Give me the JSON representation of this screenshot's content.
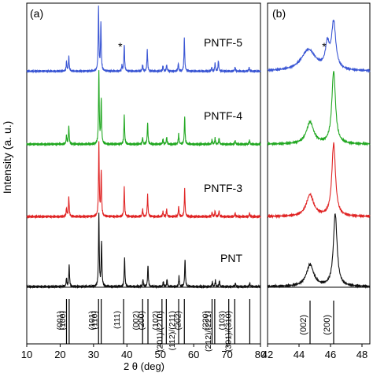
{
  "figure": {
    "ylabel": "Intensity (a. u.)",
    "xlabel": "2 θ (deg)"
  },
  "chart_data": [
    {
      "type": "line",
      "panel_label": "(a)",
      "xlabel": "2 θ (deg)",
      "ylabel": "Intensity (a. u.)",
      "xlim": [
        10,
        80
      ],
      "x_ticks": [
        10,
        20,
        30,
        40,
        50,
        60,
        70,
        80
      ],
      "grid": false,
      "series": [
        {
          "name": "PNTF-5",
          "color": "#3a56d4",
          "peaks": [
            [
              21.9,
              0.14
            ],
            [
              22.6,
              0.22
            ],
            [
              31.5,
              0.95
            ],
            [
              32.2,
              0.72
            ],
            [
              38.5,
              0.08
            ],
            [
              39.2,
              0.4
            ],
            [
              44.7,
              0.1
            ],
            [
              46.1,
              0.32
            ],
            [
              50.8,
              0.08
            ],
            [
              51.9,
              0.1
            ],
            [
              55.4,
              0.12
            ],
            [
              57.2,
              0.5
            ],
            [
              65.4,
              0.06
            ],
            [
              66.4,
              0.12
            ],
            [
              67.4,
              0.16
            ],
            [
              72.4,
              0.06
            ],
            [
              76.6,
              0.06
            ]
          ]
        },
        {
          "name": "PNTF-4",
          "color": "#22a822",
          "peaks": [
            [
              21.9,
              0.12
            ],
            [
              22.6,
              0.25
            ],
            [
              31.6,
              1.0
            ],
            [
              32.3,
              0.62
            ],
            [
              39.2,
              0.4
            ],
            [
              44.7,
              0.09
            ],
            [
              46.2,
              0.3
            ],
            [
              50.8,
              0.07
            ],
            [
              51.9,
              0.1
            ],
            [
              55.5,
              0.14
            ],
            [
              57.3,
              0.38
            ],
            [
              65.5,
              0.06
            ],
            [
              66.4,
              0.08
            ],
            [
              67.6,
              0.08
            ],
            [
              72.4,
              0.05
            ],
            [
              76.7,
              0.05
            ]
          ]
        },
        {
          "name": "PNTF-3",
          "color": "#e02424",
          "peaks": [
            [
              21.9,
              0.12
            ],
            [
              22.6,
              0.27
            ],
            [
              31.6,
              1.0
            ],
            [
              32.3,
              0.62
            ],
            [
              39.2,
              0.4
            ],
            [
              44.7,
              0.1
            ],
            [
              46.2,
              0.3
            ],
            [
              50.8,
              0.07
            ],
            [
              51.9,
              0.1
            ],
            [
              55.5,
              0.14
            ],
            [
              57.3,
              0.38
            ],
            [
              65.5,
              0.06
            ],
            [
              66.4,
              0.08
            ],
            [
              67.6,
              0.08
            ],
            [
              72.4,
              0.05
            ],
            [
              76.7,
              0.05
            ]
          ]
        },
        {
          "name": "PNT",
          "color": "#111111",
          "peaks": [
            [
              21.9,
              0.12
            ],
            [
              22.7,
              0.3
            ],
            [
              31.6,
              1.0
            ],
            [
              32.4,
              0.62
            ],
            [
              39.3,
              0.4
            ],
            [
              44.8,
              0.1
            ],
            [
              46.3,
              0.3
            ],
            [
              50.9,
              0.07
            ],
            [
              52.0,
              0.1
            ],
            [
              55.6,
              0.14
            ],
            [
              57.4,
              0.38
            ],
            [
              65.6,
              0.06
            ],
            [
              66.5,
              0.08
            ],
            [
              67.7,
              0.08
            ],
            [
              72.5,
              0.05
            ],
            [
              76.8,
              0.05
            ]
          ]
        }
      ],
      "annotations": [
        {
          "text": "*",
          "series": "PNTF-5",
          "x": 38.0
        }
      ],
      "reference_peaks": [
        {
          "x": 21.9,
          "label": "(001)"
        },
        {
          "x": 22.7,
          "label": "(100)"
        },
        {
          "x": 31.5,
          "label": "(101)"
        },
        {
          "x": 32.3,
          "label": "(110)"
        },
        {
          "x": 39.0,
          "label": "(111)"
        },
        {
          "x": 44.7,
          "label": "(002)"
        },
        {
          "x": 46.3,
          "label": "(200)"
        },
        {
          "x": 50.5,
          "label": "(102)"
        },
        {
          "x": 51.8,
          "label": "(201)/(210)"
        },
        {
          "x": 55.5,
          "label": "(112)/(211)"
        },
        {
          "x": 57.2,
          "label": "(202)"
        },
        {
          "x": 65.5,
          "label": "(220)"
        },
        {
          "x": 66.3,
          "label": "(212)/(221)"
        },
        {
          "x": 70.5,
          "label": "(103)"
        },
        {
          "x": 72.3,
          "label": "(301)/(310)"
        },
        {
          "x": 76.8,
          "label": ""
        }
      ]
    },
    {
      "type": "line",
      "panel_label": "(b)",
      "xlim": [
        42,
        48.5
      ],
      "x_ticks": [
        42,
        44,
        46,
        48
      ],
      "grid": false,
      "series": [
        {
          "name": "PNTF-5",
          "color": "#3a56d4",
          "peaks": [
            [
              44.6,
              0.32,
              0.55
            ],
            [
              45.8,
              0.35,
              0.15
            ],
            [
              46.2,
              0.7,
              0.16
            ]
          ]
        },
        {
          "name": "PNTF-4",
          "color": "#22a822",
          "peaks": [
            [
              44.7,
              0.3,
              0.28
            ],
            [
              46.2,
              1.0,
              0.14
            ]
          ]
        },
        {
          "name": "PNTF-3",
          "color": "#e02424",
          "peaks": [
            [
              44.7,
              0.3,
              0.28
            ],
            [
              46.2,
              1.0,
              0.14
            ]
          ]
        },
        {
          "name": "PNT",
          "color": "#111111",
          "peaks": [
            [
              44.7,
              0.3,
              0.28
            ],
            [
              46.3,
              1.0,
              0.14
            ]
          ]
        }
      ],
      "annotations": [
        {
          "text": "*",
          "series": "PNTF-5",
          "x": 45.6
        }
      ],
      "reference_peaks": [
        {
          "x": 44.7,
          "label": "(002)"
        },
        {
          "x": 46.2,
          "label": "(200)"
        }
      ]
    }
  ]
}
